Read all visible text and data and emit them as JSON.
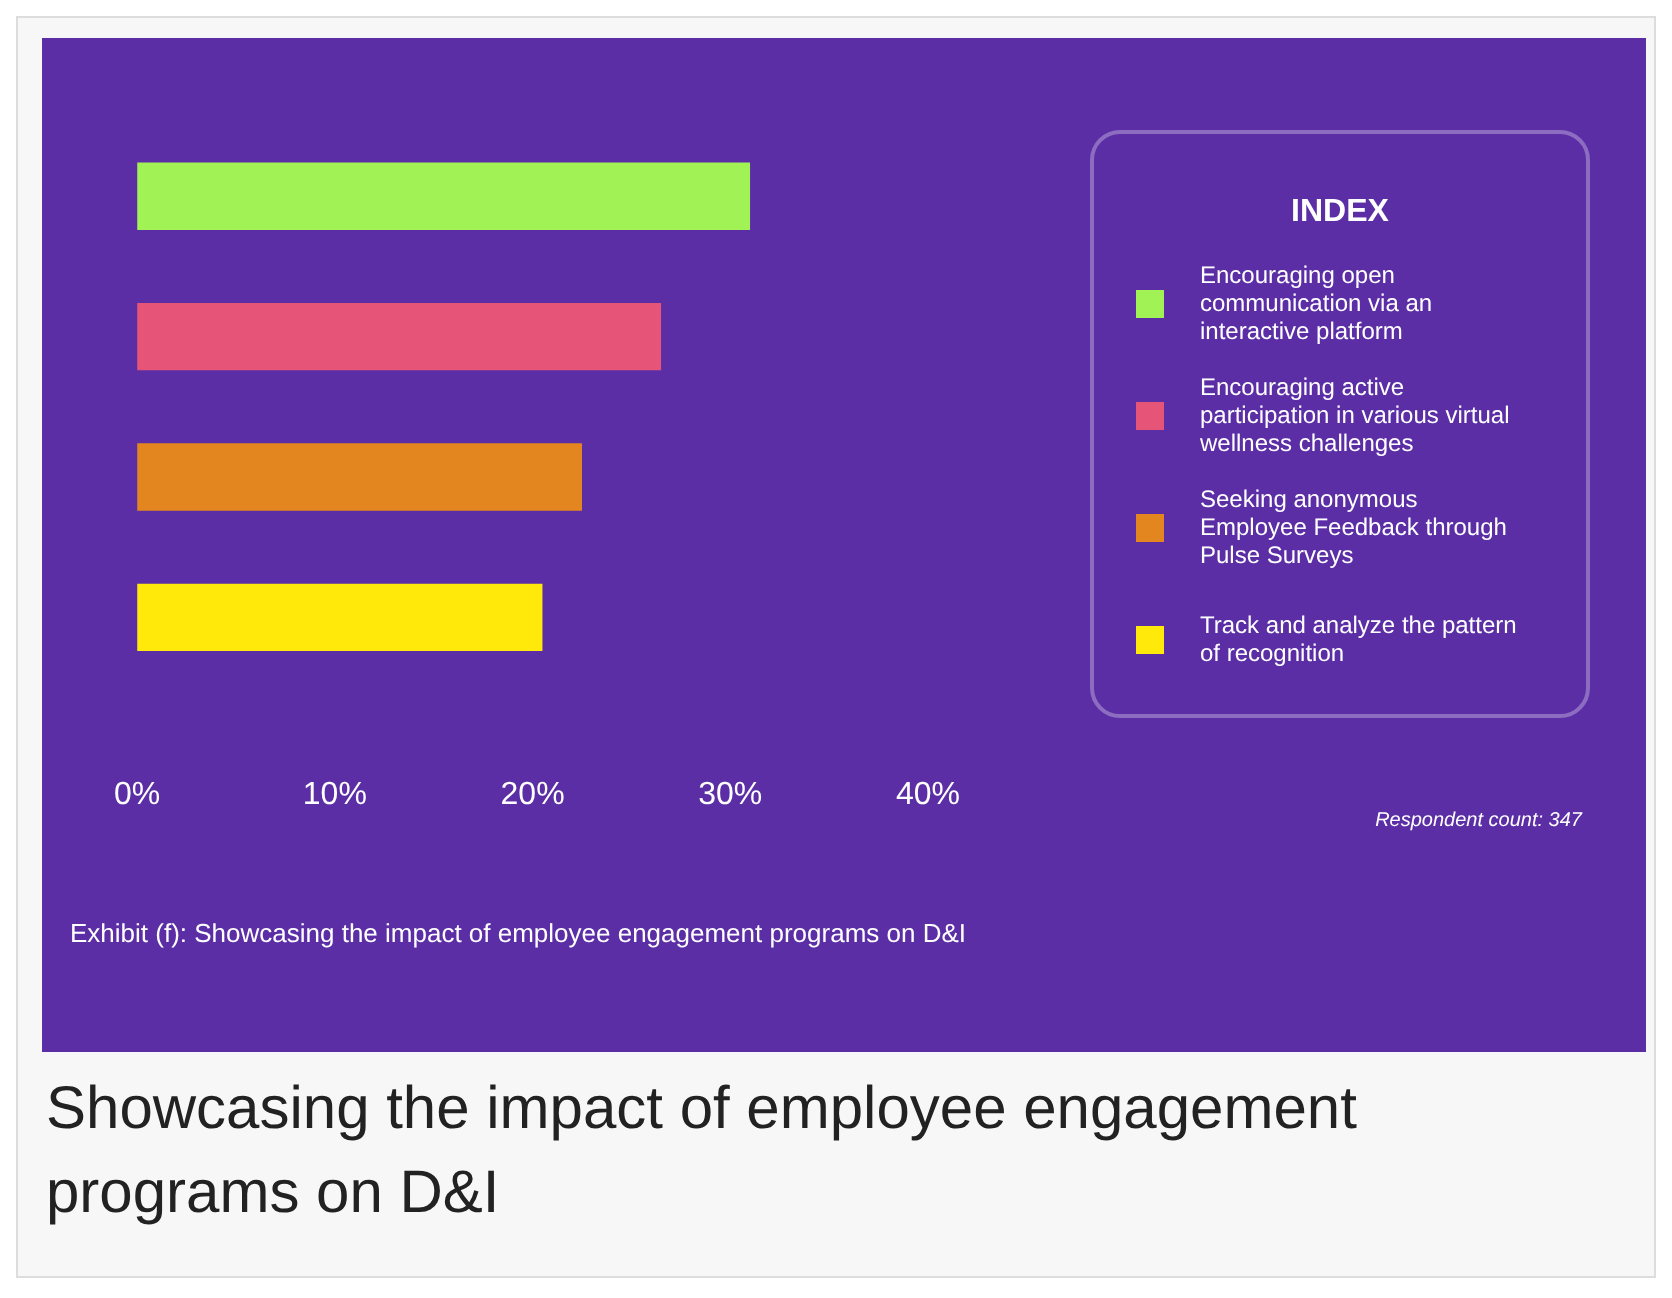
{
  "chart_data": {
    "type": "bar",
    "orientation": "horizontal",
    "stacked": true,
    "title": "Showcasing the impact of employee engagement programs on D&I",
    "legend_title": "INDEX",
    "legend": "right",
    "grid": false,
    "categories": [
      null,
      null,
      null,
      null
    ],
    "series": [
      {
        "name": "Encouraging open communication via an interactive platform",
        "color": "#a0f255",
        "values": [
          31,
          null,
          null,
          null
        ]
      },
      {
        "name": "Encouraging active participation in various virtual wellness challenges",
        "color": "#e65478",
        "values": [
          null,
          26.5,
          null,
          null
        ]
      },
      {
        "name": "Seeking anonymous Employee Feedback through Pulse Surveys",
        "color": "#e4861f",
        "values": [
          null,
          null,
          22.5,
          null
        ]
      },
      {
        "name": "Track and analyze the pattern of recognition",
        "color": "#ffe90a",
        "values": [
          null,
          null,
          null,
          20.5
        ]
      }
    ],
    "xlim": [
      0,
      40
    ],
    "xticks": [
      {
        "value": 0,
        "label": "0%"
      },
      {
        "value": 10,
        "label": "10%"
      },
      {
        "value": 20,
        "label": "20%"
      },
      {
        "value": 30,
        "label": "30%"
      },
      {
        "value": 40,
        "label": "40%"
      }
    ],
    "annotations": [
      "Exhibit (f): Showcasing the impact of employee engagement programs on D&I",
      "Respondent count: 347"
    ]
  }
}
